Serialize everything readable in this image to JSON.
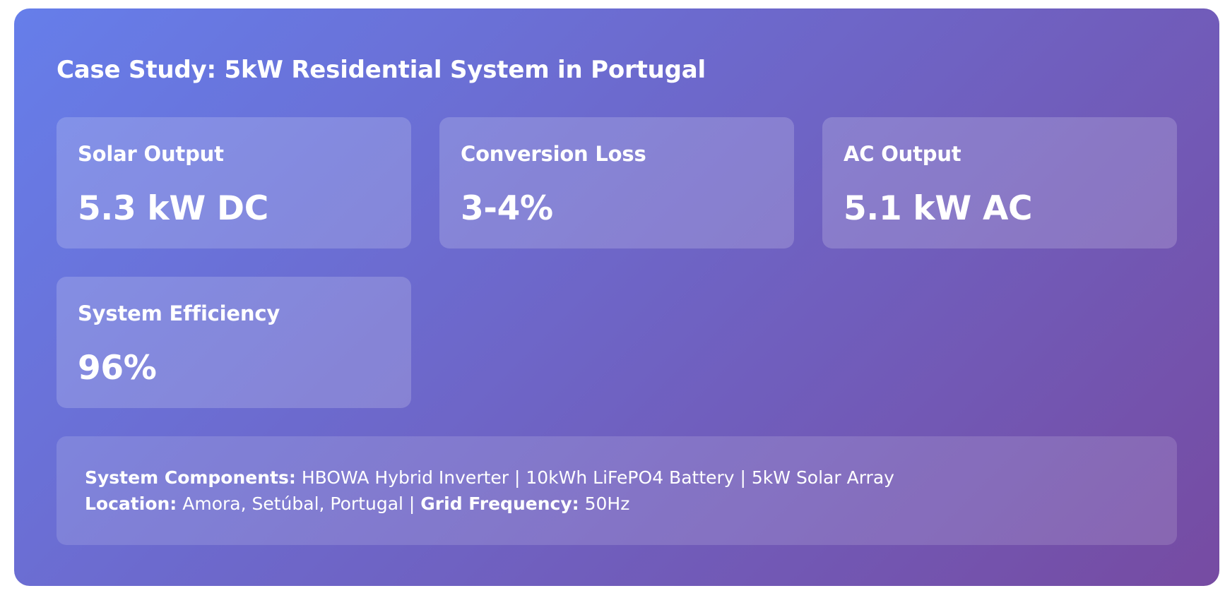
{
  "title": "Case Study: 5kW Residential System in Portugal",
  "metrics": [
    {
      "label": "Solar Output",
      "value": "5.3 kW DC"
    },
    {
      "label": "Conversion Loss",
      "value": "3-4%"
    },
    {
      "label": "AC Output",
      "value": "5.1 kW AC"
    },
    {
      "label": "System Efficiency",
      "value": "96%"
    }
  ],
  "details": {
    "components_label": "System Components:",
    "components_value": "HBOWA Hybrid Inverter | 10kWh LiFePO4 Battery | 5kW Solar Array",
    "location_label": "Location:",
    "location_value": "Amora, Setúbal, Portugal |",
    "frequency_label": "Grid Frequency:",
    "frequency_value": "50Hz"
  },
  "colors": {
    "gradient_start": "#667eea",
    "gradient_end": "#764ba2",
    "text": "#ffffff"
  }
}
